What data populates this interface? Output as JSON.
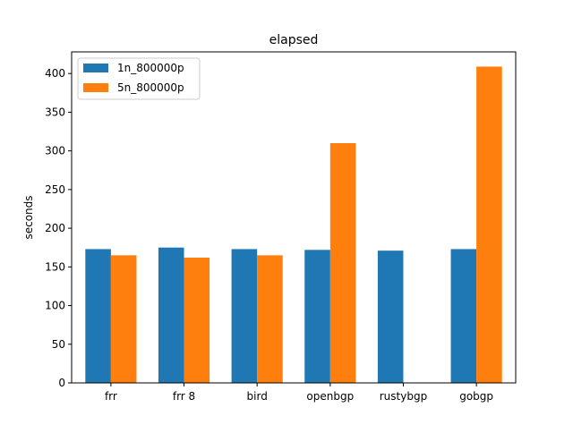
{
  "chart_data": {
    "type": "bar",
    "title": "elapsed",
    "xlabel": "",
    "ylabel": "seconds",
    "categories": [
      "frr",
      "frr 8",
      "bird",
      "openbgp",
      "rustybgp",
      "gobgp"
    ],
    "series": [
      {
        "name": "1n_800000p",
        "color": "#1f77b4",
        "values": [
          173,
          175,
          173,
          172,
          171,
          173
        ]
      },
      {
        "name": "5n_800000p",
        "color": "#ff7f0e",
        "values": [
          165,
          162,
          165,
          310,
          null,
          409
        ]
      }
    ],
    "ylim": [
      0,
      428
    ],
    "yticks": [
      0,
      50,
      100,
      150,
      200,
      250,
      300,
      350,
      400
    ],
    "grid": false,
    "legend_position": "top-left"
  }
}
